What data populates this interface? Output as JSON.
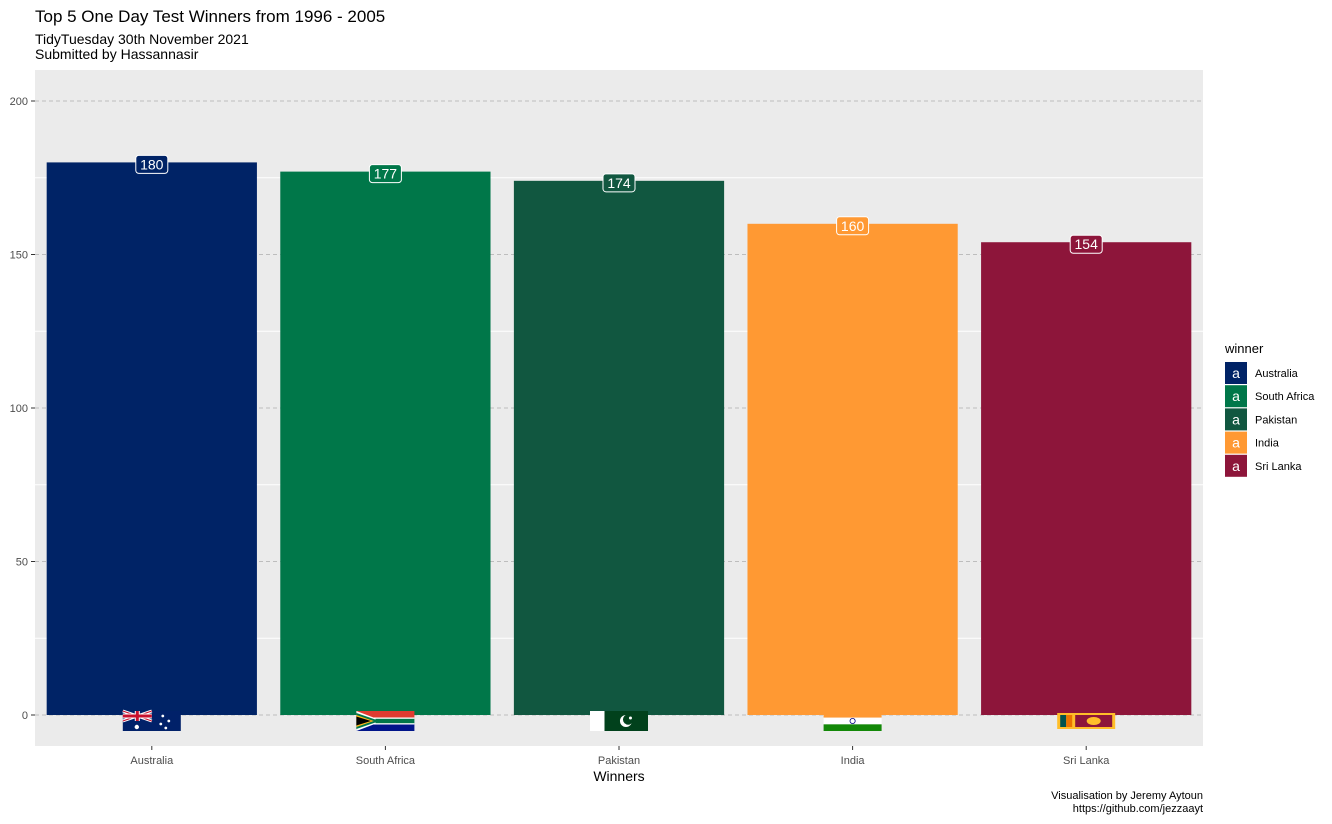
{
  "chart_data": {
    "type": "bar",
    "title": "Top 5 One Day Test Winners from 1996 - 2005",
    "subtitle": [
      "TidyTuesday 30th November 2021",
      "Submitted by Hassannasir"
    ],
    "caption": [
      "Visualisation by Jeremy Aytoun",
      "https://github.com/jezzaayt"
    ],
    "xlabel": "Winners",
    "ylabel": "",
    "categories": [
      "Australia",
      "South Africa",
      "Pakistan",
      "India",
      "Sri Lanka"
    ],
    "values": [
      180,
      177,
      174,
      160,
      154
    ],
    "colors": [
      "#002366",
      "#007749",
      "#115740",
      "#FF9933",
      "#8D153A"
    ],
    "label_text_colors": [
      "#ffffff",
      "#ffffff",
      "#ffffff",
      "#ffffff",
      "#ffffff"
    ],
    "ylim": [
      -10,
      200
    ],
    "yticks": [
      0,
      50,
      100,
      150,
      200
    ],
    "grid": true,
    "legend": {
      "title": "winner",
      "placement": "right",
      "key_glyph": "a",
      "entries": [
        "Australia",
        "South Africa",
        "Pakistan",
        "India",
        "Sri Lanka"
      ]
    },
    "flags": [
      "australia-flag-icon",
      "south-africa-flag-icon",
      "pakistan-flag-icon",
      "india-flag-icon",
      "sri-lanka-flag-icon"
    ]
  }
}
